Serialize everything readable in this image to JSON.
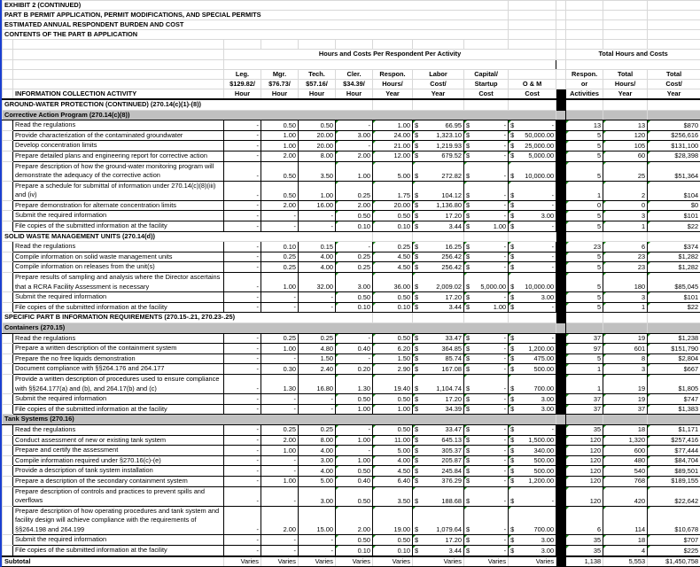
{
  "title_lines": [
    "EXHIBIT 2 (CONTINUED)",
    "PART B PERMIT APPLICATION, PERMIT MODIFICATIONS, AND SPECIAL PERMITS",
    "ESTIMATED ANNUAL RESPONDENT BURDEN AND COST",
    "CONTENTS OF THE PART B APPLICATION"
  ],
  "group_headers": {
    "per_respondent": "Hours and Costs Per Respondent Per Activity",
    "totals": "Total Hours and Costs"
  },
  "columns": {
    "activity": "INFORMATION COLLECTION ACTIVITY",
    "leg": [
      "Leg.",
      "$129.82/",
      "Hour"
    ],
    "mgr": [
      "Mgr.",
      "$76.73/",
      "Hour"
    ],
    "tech": [
      "Tech.",
      "$57.16/",
      "Hour"
    ],
    "cler": [
      "Cler.",
      "$34.39/",
      "Hour"
    ],
    "respon_hours": [
      "Respon.",
      "Hours/",
      "Year"
    ],
    "labor": [
      "Labor",
      "Cost/",
      "Year"
    ],
    "capital": [
      "Capital/",
      "Startup",
      "Cost"
    ],
    "om": [
      "",
      "O & M",
      "Cost"
    ],
    "activities": [
      "Respon.",
      "or",
      "Activities"
    ],
    "total_hours": [
      "Total",
      "Hours/",
      "Year"
    ],
    "total_cost": [
      "Total",
      "Cost/",
      "Year"
    ]
  },
  "rows": [
    {
      "type": "sec",
      "label": "GROUND-WATER PROTECTION (CONTINUED) (270.14(c)(1)-(8))"
    },
    {
      "type": "sub",
      "label": "Corrective Action Program (270.14(c)(8))"
    },
    {
      "type": "item",
      "label": "Read the regulations",
      "v": [
        "-",
        "0.50",
        "0.50",
        "-",
        "1.00",
        "66.95",
        "-",
        "-",
        "13",
        "13",
        "$870"
      ]
    },
    {
      "type": "item",
      "label": "Provide characterization of the contaminated groundwater",
      "v": [
        "-",
        "1.00",
        "20.00",
        "3.00",
        "24.00",
        "1,323.10",
        "-",
        "50,000.00",
        "5",
        "120",
        "$256,616"
      ]
    },
    {
      "type": "item",
      "label": "Develop concentration limits",
      "v": [
        "-",
        "1.00",
        "20.00",
        "-",
        "21.00",
        "1,219.93",
        "-",
        "25,000.00",
        "5",
        "105",
        "$131,100"
      ]
    },
    {
      "type": "item",
      "label": "Prepare detailed plans and engineering report for corrective action",
      "v": [
        "-",
        "2.00",
        "8.00",
        "2.00",
        "12.00",
        "679.52",
        "-",
        "5,000.00",
        "5",
        "60",
        "$28,398"
      ]
    },
    {
      "type": "item",
      "label": "Prepare description of how the ground-water monitoring program will demonstrate the adequacy of the corrective action",
      "v": [
        "-",
        "0.50",
        "3.50",
        "1.00",
        "5.00",
        "272.82",
        "-",
        "10,000.00",
        "5",
        "25",
        "$51,364"
      ]
    },
    {
      "type": "item",
      "label": "Prepare a schedule for submittal of information under 270.14(c)(8)(iii) and (iv)",
      "v": [
        "-",
        "0.50",
        "1.00",
        "0.25",
        "1.75",
        "104.12",
        "-",
        "-",
        "1",
        "2",
        "$104"
      ]
    },
    {
      "type": "item",
      "label": "Prepare demonstration for alternate concentration limits",
      "v": [
        "-",
        "2.00",
        "16.00",
        "2.00",
        "20.00",
        "1,136.80",
        "-",
        "-",
        "0",
        "0",
        "$0"
      ]
    },
    {
      "type": "item",
      "label": "Submit the required information",
      "v": [
        "-",
        "-",
        "-",
        "0.50",
        "0.50",
        "17.20",
        "-",
        "3.00",
        "5",
        "3",
        "$101"
      ]
    },
    {
      "type": "item",
      "label": "File copies of the submitted information at the facility",
      "v": [
        "-",
        "-",
        "-",
        "0.10",
        "0.10",
        "3.44",
        "1.00",
        "-",
        "5",
        "1",
        "$22"
      ]
    },
    {
      "type": "sec",
      "label": "SOLID WASTE MANAGEMENT UNITS (270.14(d))"
    },
    {
      "type": "item",
      "label": "Read the regulations",
      "v": [
        "-",
        "0.10",
        "0.15",
        "-",
        "0.25",
        "16.25",
        "-",
        "-",
        "23",
        "6",
        "$374"
      ]
    },
    {
      "type": "item",
      "label": "Compile information on solid waste management units",
      "v": [
        "-",
        "0.25",
        "4.00",
        "0.25",
        "4.50",
        "256.42",
        "-",
        "-",
        "5",
        "23",
        "$1,282"
      ]
    },
    {
      "type": "item",
      "label": "Compile information on releases from the unit(s)",
      "v": [
        "-",
        "0.25",
        "4.00",
        "0.25",
        "4.50",
        "256.42",
        "-",
        "-",
        "5",
        "23",
        "$1,282"
      ]
    },
    {
      "type": "item",
      "label": "Prepare results of sampling and analysis where the Director ascertains that a RCRA Facility Assessment is necessary",
      "v": [
        "-",
        "1.00",
        "32.00",
        "3.00",
        "36.00",
        "2,009.02",
        "5,000.00",
        "10,000.00",
        "5",
        "180",
        "$85,045"
      ]
    },
    {
      "type": "item",
      "label": "Submit the required information",
      "v": [
        "-",
        "-",
        "-",
        "0.50",
        "0.50",
        "17.20",
        "-",
        "3.00",
        "5",
        "3",
        "$101"
      ]
    },
    {
      "type": "item",
      "label": "File copies of the submitted information at the facility",
      "v": [
        "-",
        "-",
        "-",
        "0.10",
        "0.10",
        "3.44",
        "1.00",
        "-",
        "5",
        "1",
        "$22"
      ]
    },
    {
      "type": "sec",
      "label": "SPECIFIC PART B INFORMATION REQUIREMENTS (270.15-.21, 270.23-.25)"
    },
    {
      "type": "sub",
      "label": "Containers (270.15)"
    },
    {
      "type": "item",
      "label": "Read the regulations",
      "v": [
        "-",
        "0.25",
        "0.25",
        "-",
        "0.50",
        "33.47",
        "-",
        "-",
        "37",
        "19",
        "$1,238"
      ]
    },
    {
      "type": "item",
      "label": "Prepare a written description of the containment system",
      "v": [
        "-",
        "1.00",
        "4.80",
        "0.40",
        "6.20",
        "364.85",
        "-",
        "1,200.00",
        "97",
        "601",
        "$151,790"
      ]
    },
    {
      "type": "item",
      "label": "Prepare the no free liquids demonstration",
      "v": [
        "-",
        "-",
        "1.50",
        "-",
        "1.50",
        "85.74",
        "-",
        "475.00",
        "5",
        "8",
        "$2,804"
      ]
    },
    {
      "type": "item",
      "label": "Document compliance with §§264.176 and 264.177",
      "v": [
        "-",
        "0.30",
        "2.40",
        "0.20",
        "2.90",
        "167.08",
        "-",
        "500.00",
        "1",
        "3",
        "$667"
      ]
    },
    {
      "type": "item",
      "label": "Provide a written description of procedures used to ensure compliance with §§264.177(a) and (b), and 264.17(b) and (c)",
      "v": [
        "-",
        "1.30",
        "16.80",
        "1.30",
        "19.40",
        "1,104.74",
        "-",
        "700.00",
        "1",
        "19",
        "$1,805"
      ]
    },
    {
      "type": "item",
      "label": "Submit the required information",
      "v": [
        "-",
        "-",
        "-",
        "0.50",
        "0.50",
        "17.20",
        "-",
        "3.00",
        "37",
        "19",
        "$747"
      ]
    },
    {
      "type": "item",
      "label": "File copies of the submitted information at the facility",
      "v": [
        "-",
        "-",
        "-",
        "1.00",
        "1.00",
        "34.39",
        "-",
        "3.00",
        "37",
        "37",
        "$1,383"
      ]
    },
    {
      "type": "sub",
      "label": "Tank Systems (270.16)"
    },
    {
      "type": "item",
      "label": "Read the regulations",
      "v": [
        "-",
        "0.25",
        "0.25",
        "-",
        "0.50",
        "33.47",
        "-",
        "-",
        "35",
        "18",
        "$1,171"
      ]
    },
    {
      "type": "item",
      "label": "Conduct assessment of new or existing tank system",
      "v": [
        "-",
        "2.00",
        "8.00",
        "1.00",
        "11.00",
        "645.13",
        "-",
        "1,500.00",
        "120",
        "1,320",
        "$257,416"
      ]
    },
    {
      "type": "item",
      "label": "Prepare and certify the assessment",
      "v": [
        "-",
        "1.00",
        "4.00",
        "-",
        "5.00",
        "305.37",
        "-",
        "340.00",
        "120",
        "600",
        "$77,444"
      ]
    },
    {
      "type": "item",
      "label": "Compile information required under §270.16(c)-(e)",
      "v": [
        "-",
        "-",
        "3.00",
        "1.00",
        "4.00",
        "205.87",
        "-",
        "500.00",
        "120",
        "480",
        "$84,704"
      ]
    },
    {
      "type": "item",
      "label": "Provide a description of tank system installation",
      "v": [
        "-",
        "-",
        "4.00",
        "0.50",
        "4.50",
        "245.84",
        "-",
        "500.00",
        "120",
        "540",
        "$89,501"
      ]
    },
    {
      "type": "item",
      "label": "Prepare a description of the secondary containment system",
      "v": [
        "-",
        "1.00",
        "5.00",
        "0.40",
        "6.40",
        "376.29",
        "-",
        "1,200.00",
        "120",
        "768",
        "$189,155"
      ]
    },
    {
      "type": "item",
      "label": "Prepare description of controls and practices to prevent spills and overflows",
      "v": [
        "-",
        "-",
        "3.00",
        "0.50",
        "3.50",
        "188.68",
        "-",
        "-",
        "120",
        "420",
        "$22,642"
      ]
    },
    {
      "type": "item",
      "label": "Prepare description of how operating procedures and tank system and facility design will achieve compliance with the requirements of §§264.198 and 264.199",
      "v": [
        "-",
        "2.00",
        "15.00",
        "2.00",
        "19.00",
        "1,079.64",
        "-",
        "700.00",
        "6",
        "114",
        "$10,678"
      ]
    },
    {
      "type": "item",
      "label": "Submit the required information",
      "v": [
        "-",
        "-",
        "-",
        "0.50",
        "0.50",
        "17.20",
        "-",
        "3.00",
        "35",
        "18",
        "$707"
      ]
    },
    {
      "type": "item",
      "label": "File copies of the submitted information at the facility",
      "v": [
        "-",
        "-",
        "-",
        "0.10",
        "0.10",
        "3.44",
        "-",
        "3.00",
        "35",
        "4",
        "$225"
      ]
    }
  ],
  "subtotal": {
    "label": "Subtotal",
    "v": [
      "Varies",
      "Varies",
      "Varies",
      "Varies",
      "Varies",
      "Varies",
      "Varies",
      "Varies",
      "1,138",
      "5,553",
      "$1,450,758"
    ]
  },
  "currency_symbol": "$",
  "colors": {
    "section_fill": "#c0c0c0",
    "divider": "#000000",
    "window_edge": "#1a3fd0"
  }
}
